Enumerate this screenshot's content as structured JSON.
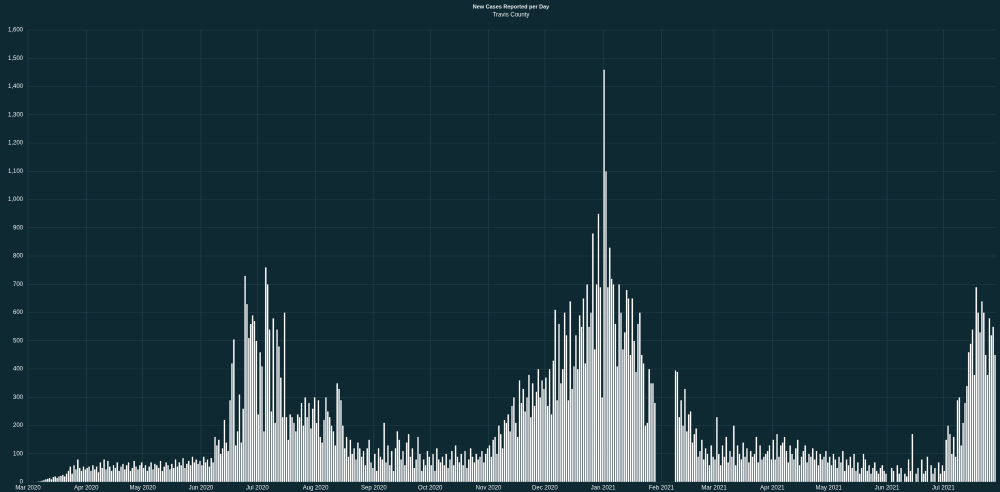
{
  "chart_data": {
    "type": "bar",
    "title": "New Cases Reported per Day",
    "subtitle": "Travis County",
    "color": "#ffffff",
    "grid": true,
    "ylim": [
      0,
      1600
    ],
    "yticks": [
      0,
      100,
      200,
      300,
      400,
      500,
      600,
      700,
      800,
      900,
      {
        "value": 1000,
        "label": "1,000"
      },
      {
        "value": 1100,
        "label": "1,100"
      },
      {
        "value": 1200,
        "label": "1,200"
      },
      {
        "value": 1300,
        "label": "1,300"
      },
      {
        "value": 1400,
        "label": "1,400"
      },
      {
        "value": 1500,
        "label": "1,500"
      },
      {
        "value": 1600,
        "label": "1,600"
      }
    ],
    "categories": [
      "Mar 2020",
      null,
      null,
      null,
      null,
      null,
      null,
      null,
      null,
      null,
      null,
      null,
      null,
      null,
      null,
      null,
      null,
      null,
      null,
      null,
      null,
      null,
      null,
      null,
      null,
      null,
      null,
      null,
      null,
      null,
      null,
      "Apr 2020",
      null,
      null,
      null,
      null,
      null,
      null,
      null,
      null,
      null,
      null,
      null,
      null,
      null,
      null,
      null,
      null,
      null,
      null,
      null,
      null,
      null,
      null,
      null,
      null,
      null,
      null,
      null,
      null,
      null,
      "May 2020",
      null,
      null,
      null,
      null,
      null,
      null,
      null,
      null,
      null,
      null,
      null,
      null,
      null,
      null,
      null,
      null,
      null,
      null,
      null,
      null,
      null,
      null,
      null,
      null,
      null,
      null,
      null,
      null,
      null,
      null,
      "Jun 2020",
      null,
      null,
      null,
      null,
      null,
      null,
      null,
      null,
      null,
      null,
      null,
      null,
      null,
      null,
      null,
      null,
      null,
      null,
      null,
      null,
      null,
      null,
      null,
      null,
      null,
      null,
      null,
      null,
      null,
      "Jul 2020",
      null,
      null,
      null,
      null,
      null,
      null,
      null,
      null,
      null,
      null,
      null,
      null,
      null,
      null,
      null,
      null,
      null,
      null,
      null,
      null,
      null,
      null,
      null,
      null,
      null,
      null,
      null,
      null,
      null,
      null,
      "Aug 2020",
      null,
      null,
      null,
      null,
      null,
      null,
      null,
      null,
      null,
      null,
      null,
      null,
      null,
      null,
      null,
      null,
      null,
      null,
      null,
      null,
      null,
      null,
      null,
      null,
      null,
      null,
      null,
      null,
      null,
      null,
      "Sep 2020",
      null,
      null,
      null,
      null,
      null,
      null,
      null,
      null,
      null,
      null,
      null,
      null,
      null,
      null,
      null,
      null,
      null,
      null,
      null,
      null,
      null,
      null,
      null,
      null,
      null,
      null,
      null,
      null,
      null,
      "Oct 2020",
      null,
      null,
      null,
      null,
      null,
      null,
      null,
      null,
      null,
      null,
      null,
      null,
      null,
      null,
      null,
      null,
      null,
      null,
      null,
      null,
      null,
      null,
      null,
      null,
      null,
      null,
      null,
      null,
      null,
      null,
      "Nov 2020",
      null,
      null,
      null,
      null,
      null,
      null,
      null,
      null,
      null,
      null,
      null,
      null,
      null,
      null,
      null,
      null,
      null,
      null,
      null,
      null,
      null,
      null,
      null,
      null,
      null,
      null,
      null,
      null,
      null,
      "Dec 2020",
      null,
      null,
      null,
      null,
      null,
      null,
      null,
      null,
      null,
      null,
      null,
      null,
      null,
      null,
      null,
      null,
      null,
      null,
      null,
      null,
      null,
      null,
      null,
      null,
      null,
      null,
      null,
      null,
      null,
      null,
      "Jan 2021",
      null,
      null,
      null,
      null,
      null,
      null,
      null,
      null,
      null,
      null,
      null,
      null,
      null,
      null,
      null,
      null,
      null,
      null,
      null,
      null,
      null,
      null,
      null,
      null,
      null,
      null,
      null,
      null,
      null,
      null,
      "Feb 2021",
      null,
      null,
      null,
      null,
      null,
      null,
      null,
      null,
      null,
      null,
      null,
      null,
      null,
      null,
      null,
      null,
      null,
      null,
      null,
      null,
      null,
      null,
      null,
      null,
      null,
      null,
      null,
      "Mar 2021",
      null,
      null,
      null,
      null,
      null,
      null,
      null,
      null,
      null,
      null,
      null,
      null,
      null,
      null,
      null,
      null,
      null,
      null,
      null,
      null,
      null,
      null,
      null,
      null,
      null,
      null,
      null,
      null,
      null,
      null,
      "Apr 2021",
      null,
      null,
      null,
      null,
      null,
      null,
      null,
      null,
      null,
      null,
      null,
      null,
      null,
      null,
      null,
      null,
      null,
      null,
      null,
      null,
      null,
      null,
      null,
      null,
      null,
      null,
      null,
      null,
      null,
      "May 2021",
      null,
      null,
      null,
      null,
      null,
      null,
      null,
      null,
      null,
      null,
      null,
      null,
      null,
      null,
      null,
      null,
      null,
      null,
      null,
      null,
      null,
      null,
      null,
      null,
      null,
      null,
      null,
      null,
      null,
      null,
      "Jun 2021",
      null,
      null,
      null,
      null,
      null,
      null,
      null,
      null,
      null,
      null,
      null,
      null,
      null,
      null,
      null,
      null,
      null,
      null,
      null,
      null,
      null,
      null,
      null,
      null,
      null,
      null,
      null,
      null,
      null,
      "Jul 2021",
      null,
      null,
      null,
      null,
      null,
      null,
      null,
      null,
      null,
      null,
      null,
      null,
      null,
      null,
      null,
      null,
      null,
      null,
      null,
      null,
      null,
      null,
      null,
      null,
      null,
      null,
      null
    ],
    "values": [
      0,
      0,
      0,
      0,
      0,
      2,
      3,
      5,
      8,
      10,
      12,
      15,
      10,
      18,
      20,
      15,
      20,
      22,
      25,
      20,
      30,
      40,
      55,
      30,
      60,
      45,
      80,
      50,
      40,
      55,
      45,
      50,
      55,
      40,
      60,
      45,
      55,
      35,
      70,
      50,
      80,
      45,
      75,
      55,
      40,
      60,
      50,
      70,
      40,
      55,
      65,
      45,
      60,
      70,
      40,
      50,
      75,
      55,
      45,
      60,
      70,
      50,
      60,
      40,
      55,
      70,
      45,
      65,
      60,
      50,
      75,
      40,
      55,
      70,
      60,
      45,
      65,
      50,
      80,
      55,
      70,
      60,
      85,
      50,
      65,
      75,
      60,
      90,
      70,
      80,
      65,
      75,
      60,
      90,
      70,
      80,
      55,
      85,
      70,
      160,
      130,
      150,
      100,
      120,
      220,
      140,
      110,
      290,
      420,
      505,
      130,
      180,
      310,
      140,
      260,
      730,
      630,
      510,
      560,
      590,
      570,
      500,
      240,
      460,
      410,
      180,
      760,
      700,
      540,
      250,
      580,
      210,
      540,
      480,
      370,
      230,
      600,
      230,
      150,
      240,
      230,
      210,
      180,
      240,
      230,
      280,
      200,
      300,
      230,
      280,
      190,
      260,
      300,
      210,
      290,
      160,
      140,
      220,
      300,
      250,
      230,
      200,
      180,
      130,
      350,
      330,
      290,
      200,
      120,
      160,
      90,
      150,
      100,
      120,
      80,
      140,
      120,
      90,
      110,
      60,
      120,
      150,
      70,
      50,
      100,
      40,
      120,
      90,
      80,
      210,
      70,
      130,
      60,
      110,
      40,
      120,
      180,
      150,
      80,
      110,
      60,
      140,
      170,
      90,
      120,
      50,
      80,
      160,
      100,
      40,
      80,
      60,
      110,
      90,
      60,
      100,
      40,
      120,
      80,
      70,
      90,
      60,
      100,
      50,
      80,
      110,
      60,
      130,
      90,
      70,
      100,
      60,
      110,
      50,
      80,
      120,
      90,
      70,
      100,
      80,
      90,
      110,
      70,
      100,
      120,
      130,
      90,
      150,
      160,
      100,
      200,
      170,
      120,
      220,
      210,
      240,
      180,
      270,
      300,
      210,
      160,
      360,
      280,
      330,
      250,
      300,
      380,
      230,
      350,
      270,
      320,
      400,
      300,
      360,
      330,
      370,
      270,
      400,
      240,
      430,
      610,
      290,
      560,
      350,
      400,
      600,
      520,
      290,
      640,
      330,
      410,
      520,
      400,
      590,
      550,
      650,
      420,
      700,
      550,
      600,
      880,
      470,
      700,
      950,
      690,
      300,
      1460,
      1100,
      690,
      830,
      720,
      700,
      560,
      410,
      700,
      600,
      470,
      530,
      680,
      650,
      450,
      650,
      500,
      390,
      560,
      600,
      450,
      420,
      200,
      210,
      400,
      350,
      350,
      280,
      0,
      0,
      0,
      0,
      0,
      0,
      0,
      0,
      0,
      0,
      395,
      390,
      230,
      290,
      200,
      330,
      180,
      240,
      250,
      140,
      170,
      190,
      90,
      110,
      150,
      80,
      120,
      100,
      60,
      130,
      90,
      80,
      230,
      100,
      60,
      130,
      90,
      160,
      70,
      110,
      90,
      200,
      60,
      130,
      100,
      80,
      140,
      90,
      120,
      70,
      110,
      90,
      100,
      160,
      70,
      130,
      80,
      90,
      100,
      110,
      130,
      80,
      150,
      80,
      170,
      90,
      130,
      140,
      160,
      110,
      70,
      130,
      100,
      80,
      120,
      150,
      60,
      90,
      110,
      130,
      70,
      100,
      90,
      120,
      80,
      110,
      60,
      100,
      80,
      90,
      110,
      70,
      90,
      60,
      100,
      80,
      50,
      90,
      70,
      110,
      40,
      80,
      60,
      90,
      50,
      100,
      40,
      70,
      30,
      50,
      100,
      80,
      40,
      60,
      30,
      50,
      70,
      40,
      30,
      50,
      60,
      40,
      30,
      0,
      0,
      50,
      40,
      0,
      60,
      30,
      50,
      0,
      30,
      20,
      80,
      40,
      170,
      0,
      30,
      50,
      0,
      80,
      30,
      40,
      90,
      0,
      60,
      30,
      50,
      0,
      70,
      30,
      60,
      40,
      150,
      200,
      170,
      100,
      160,
      90,
      290,
      300,
      130,
      210,
      280,
      340,
      460,
      490,
      540,
      380,
      690,
      600,
      530,
      640,
      600,
      450,
      380,
      580,
      520,
      550,
      450
    ]
  }
}
